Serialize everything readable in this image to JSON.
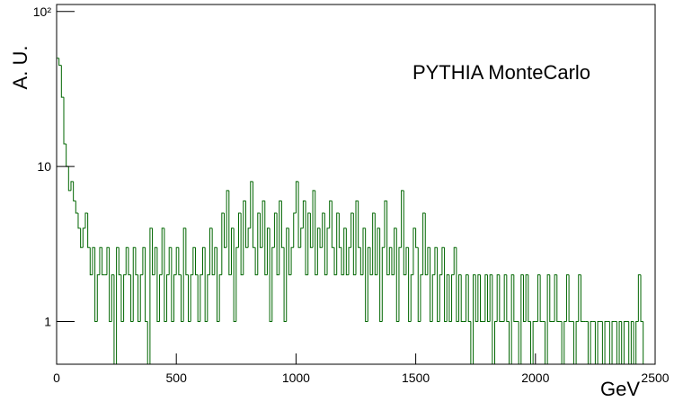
{
  "chart_data": {
    "type": "histogram",
    "text": "PYTHIA MonteCarlo",
    "xlabel": "GeV",
    "ylabel": "A. U.",
    "color": "#006600",
    "log_y": true,
    "xlim": [
      0,
      2500
    ],
    "ylim": [
      0.53,
      111
    ],
    "xticks": [
      0,
      500,
      1000,
      1500,
      2000,
      2500
    ],
    "yticks": [
      1,
      10,
      {
        "value": 100,
        "label": "10²"
      }
    ],
    "bins": [
      0,
      10,
      20,
      30,
      40,
      50,
      60,
      70,
      80,
      90,
      100,
      110,
      120,
      130,
      140,
      150,
      160,
      170,
      180,
      190,
      200,
      210,
      220,
      230,
      240,
      250,
      260,
      270,
      280,
      290,
      300,
      310,
      320,
      330,
      340,
      350,
      360,
      370,
      380,
      390,
      400,
      410,
      420,
      430,
      440,
      450,
      460,
      470,
      480,
      490,
      500,
      510,
      520,
      530,
      540,
      550,
      560,
      570,
      580,
      590,
      600,
      610,
      620,
      630,
      640,
      650,
      660,
      670,
      680,
      690,
      700,
      710,
      720,
      730,
      740,
      750,
      760,
      770,
      780,
      790,
      800,
      810,
      820,
      830,
      840,
      850,
      860,
      870,
      880,
      890,
      900,
      910,
      920,
      930,
      940,
      950,
      960,
      970,
      980,
      990,
      1000,
      1010,
      1020,
      1030,
      1040,
      1050,
      1060,
      1070,
      1080,
      1090,
      1100,
      1110,
      1120,
      1130,
      1140,
      1150,
      1160,
      1170,
      1180,
      1190,
      1200,
      1210,
      1220,
      1230,
      1240,
      1250,
      1260,
      1270,
      1280,
      1290,
      1300,
      1310,
      1320,
      1330,
      1340,
      1350,
      1360,
      1370,
      1380,
      1390,
      1400,
      1410,
      1420,
      1430,
      1440,
      1450,
      1460,
      1470,
      1480,
      1490,
      1500,
      1510,
      1520,
      1530,
      1540,
      1550,
      1560,
      1570,
      1580,
      1590,
      1600,
      1610,
      1620,
      1630,
      1640,
      1650,
      1660,
      1670,
      1680,
      1690,
      1700,
      1710,
      1720,
      1730,
      1740,
      1750,
      1760,
      1770,
      1780,
      1790,
      1800,
      1810,
      1820,
      1830,
      1840,
      1850,
      1860,
      1870,
      1880,
      1890,
      1900,
      1910,
      1920,
      1930,
      1940,
      1950,
      1960,
      1970,
      1980,
      1990,
      2000,
      2010,
      2020,
      2030,
      2040,
      2050,
      2060,
      2070,
      2080,
      2090,
      2100,
      2110,
      2120,
      2130,
      2140,
      2150,
      2160,
      2170,
      2180,
      2190,
      2200,
      2210,
      2220,
      2230,
      2240,
      2250,
      2260,
      2270,
      2280,
      2290,
      2300,
      2310,
      2320,
      2330,
      2340,
      2350,
      2360,
      2370,
      2380,
      2390,
      2400,
      2410,
      2420,
      2430,
      2440,
      2450,
      2460,
      2470,
      2480,
      2490,
      2500
    ],
    "values": [
      50,
      45,
      28,
      14,
      10,
      7,
      8,
      6,
      5,
      4,
      3,
      4,
      5,
      3,
      2,
      3,
      1,
      2,
      3,
      2,
      2,
      3,
      1,
      2,
      0,
      3,
      2,
      1,
      2,
      3,
      2,
      1,
      3,
      2,
      1,
      2,
      3,
      1,
      0,
      4,
      2,
      3,
      1,
      2,
      4,
      1,
      2,
      3,
      1,
      2,
      3,
      2,
      1,
      4,
      2,
      1,
      2,
      3,
      2,
      1,
      2,
      3,
      1,
      2,
      4,
      2,
      3,
      1,
      2,
      5,
      3,
      7,
      2,
      4,
      1,
      3,
      5,
      2,
      6,
      3,
      4,
      8,
      3,
      2,
      5,
      3,
      6,
      2,
      4,
      1,
      3,
      5,
      2,
      6,
      3,
      1,
      4,
      2,
      3,
      5,
      8,
      3,
      4,
      6,
      2,
      5,
      3,
      7,
      2,
      4,
      3,
      5,
      2,
      4,
      6,
      3,
      2,
      5,
      3,
      2,
      4,
      2,
      3,
      5,
      2,
      6,
      3,
      2,
      4,
      1,
      3,
      2,
      5,
      2,
      4,
      1,
      3,
      6,
      2,
      3,
      2,
      4,
      1,
      3,
      7,
      2,
      3,
      1,
      2,
      4,
      3,
      1,
      2,
      5,
      2,
      3,
      1,
      2,
      3,
      1,
      2,
      3,
      1,
      2,
      1,
      2,
      3,
      1,
      2,
      1,
      1,
      2,
      1,
      0,
      2,
      1,
      2,
      1,
      1,
      2,
      1,
      2,
      0,
      1,
      2,
      1,
      1,
      2,
      1,
      0,
      2,
      1,
      1,
      0,
      2,
      1,
      2,
      1,
      0,
      1,
      1,
      2,
      1,
      1,
      0,
      2,
      1,
      1,
      2,
      1,
      1,
      0,
      1,
      2,
      1,
      1,
      0,
      1,
      2,
      1,
      1,
      1,
      0,
      1,
      1,
      0,
      1,
      1,
      0,
      1,
      1,
      0,
      1,
      1,
      0,
      1,
      0,
      1,
      1,
      0,
      1,
      0,
      1,
      2,
      1,
      0,
      0,
      0,
      0,
      0
    ]
  }
}
